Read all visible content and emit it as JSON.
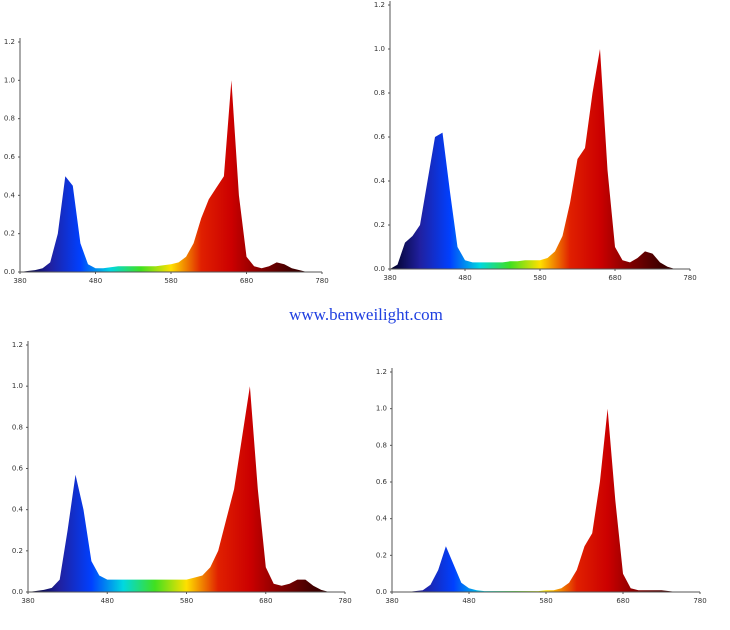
{
  "watermark": "www.benweilight.com",
  "chart_data": [
    {
      "type": "area",
      "x": [
        380,
        390,
        400,
        410,
        420,
        430,
        440,
        450,
        460,
        470,
        480,
        490,
        500,
        510,
        520,
        530,
        540,
        550,
        560,
        570,
        580,
        590,
        600,
        610,
        620,
        630,
        640,
        650,
        660,
        670,
        680,
        690,
        700,
        710,
        720,
        730,
        740,
        750,
        760,
        770,
        780
      ],
      "values": [
        0,
        0.005,
        0.01,
        0.02,
        0.05,
        0.2,
        0.5,
        0.45,
        0.15,
        0.04,
        0.02,
        0.02,
        0.025,
        0.03,
        0.03,
        0.03,
        0.03,
        0.03,
        0.03,
        0.035,
        0.04,
        0.05,
        0.08,
        0.15,
        0.28,
        0.38,
        0.44,
        0.5,
        1.0,
        0.4,
        0.08,
        0.03,
        0.02,
        0.03,
        0.05,
        0.04,
        0.02,
        0.01,
        0,
        0,
        0
      ],
      "xlim": [
        380,
        780
      ],
      "xticks": [
        380,
        480,
        580,
        680,
        780
      ],
      "ylim": [
        0,
        1.2
      ],
      "yticks": [
        {
          "value": 0,
          "label": "0.0"
        },
        0.2,
        0.4,
        0.6,
        0.8,
        {
          "value": 1,
          "label": "1.0"
        },
        1.2
      ],
      "colors": [
        "#000020",
        "#2020a0",
        "#0040ff",
        "#00d8e0",
        "#40e020",
        "#ffe000",
        "#e02000",
        "#cc0000",
        "#800000",
        "#400000",
        "#200000"
      ]
    },
    {
      "type": "area",
      "x": [
        380,
        390,
        400,
        410,
        420,
        430,
        440,
        450,
        460,
        470,
        480,
        490,
        500,
        510,
        520,
        530,
        540,
        550,
        560,
        570,
        580,
        590,
        600,
        610,
        620,
        630,
        640,
        650,
        660,
        670,
        680,
        690,
        700,
        710,
        720,
        730,
        740,
        750,
        760,
        770,
        780
      ],
      "values": [
        0,
        0.02,
        0.12,
        0.15,
        0.2,
        0.4,
        0.6,
        0.62,
        0.35,
        0.1,
        0.04,
        0.03,
        0.03,
        0.03,
        0.03,
        0.03,
        0.035,
        0.035,
        0.04,
        0.04,
        0.04,
        0.05,
        0.08,
        0.15,
        0.3,
        0.5,
        0.55,
        0.8,
        1.0,
        0.45,
        0.1,
        0.04,
        0.03,
        0.05,
        0.08,
        0.07,
        0.03,
        0.01,
        0,
        0,
        0
      ],
      "xlim": [
        380,
        780
      ],
      "xticks": [
        380,
        480,
        580,
        680,
        780
      ],
      "ylim": [
        0,
        1.2
      ],
      "yticks": [
        {
          "value": 0,
          "label": "0.0"
        },
        0.2,
        0.4,
        0.6,
        0.8,
        {
          "value": 1,
          "label": "1.0"
        },
        1.2
      ],
      "colors": [
        "#000020",
        "#2020a0",
        "#0040ff",
        "#00d8e0",
        "#40e020",
        "#ffe000",
        "#e02000",
        "#cc0000",
        "#800000",
        "#400000",
        "#200000"
      ]
    },
    {
      "type": "area",
      "x": [
        380,
        390,
        400,
        410,
        420,
        430,
        440,
        450,
        460,
        470,
        480,
        490,
        500,
        510,
        520,
        530,
        540,
        550,
        560,
        570,
        580,
        590,
        600,
        610,
        620,
        630,
        640,
        650,
        660,
        670,
        680,
        690,
        700,
        710,
        720,
        730,
        740,
        750,
        760,
        770,
        780
      ],
      "values": [
        0,
        0.005,
        0.01,
        0.02,
        0.06,
        0.3,
        0.57,
        0.4,
        0.15,
        0.08,
        0.06,
        0.06,
        0.06,
        0.06,
        0.06,
        0.06,
        0.06,
        0.06,
        0.06,
        0.06,
        0.06,
        0.07,
        0.08,
        0.12,
        0.2,
        0.35,
        0.5,
        0.75,
        1.0,
        0.5,
        0.12,
        0.04,
        0.03,
        0.04,
        0.06,
        0.06,
        0.03,
        0.01,
        0,
        0,
        0
      ],
      "xlim": [
        380,
        780
      ],
      "xticks": [
        380,
        480,
        580,
        680,
        780
      ],
      "ylim": [
        0,
        1.2
      ],
      "yticks": [
        {
          "value": 0,
          "label": "0.0"
        },
        0.2,
        0.4,
        0.6,
        0.8,
        {
          "value": 1,
          "label": "1.0"
        },
        1.2
      ],
      "colors": [
        "#000020",
        "#2020a0",
        "#0040ff",
        "#00d8e0",
        "#40e020",
        "#ffe000",
        "#e02000",
        "#cc0000",
        "#800000",
        "#400000",
        "#200000"
      ]
    },
    {
      "type": "area",
      "x": [
        380,
        390,
        400,
        410,
        420,
        430,
        440,
        450,
        460,
        470,
        480,
        490,
        500,
        510,
        520,
        530,
        540,
        550,
        560,
        570,
        580,
        590,
        600,
        610,
        620,
        630,
        640,
        650,
        660,
        670,
        680,
        690,
        700,
        710,
        720,
        730,
        740,
        750,
        760,
        770,
        780
      ],
      "values": [
        0,
        0,
        0,
        0.005,
        0.01,
        0.04,
        0.12,
        0.25,
        0.15,
        0.05,
        0.02,
        0.01,
        0.005,
        0.005,
        0.005,
        0.005,
        0.005,
        0.005,
        0.005,
        0.005,
        0.01,
        0.01,
        0.02,
        0.05,
        0.12,
        0.25,
        0.32,
        0.6,
        1.0,
        0.5,
        0.1,
        0.02,
        0.01,
        0.01,
        0.01,
        0.01,
        0.005,
        0,
        0,
        0,
        0
      ],
      "xlim": [
        380,
        780
      ],
      "xticks": [
        380,
        480,
        580,
        680,
        780
      ],
      "ylim": [
        0,
        1.2
      ],
      "yticks": [
        {
          "value": 0,
          "label": "0.0"
        },
        0.2,
        0.4,
        0.6,
        0.8,
        {
          "value": 1,
          "label": "1.0"
        },
        1.2
      ],
      "colors": [
        "#000020",
        "#2020a0",
        "#0040ff",
        "#00d8e0",
        "#40e020",
        "#ffe000",
        "#e02000",
        "#cc0000",
        "#800000",
        "#400000",
        "#200000"
      ]
    }
  ]
}
